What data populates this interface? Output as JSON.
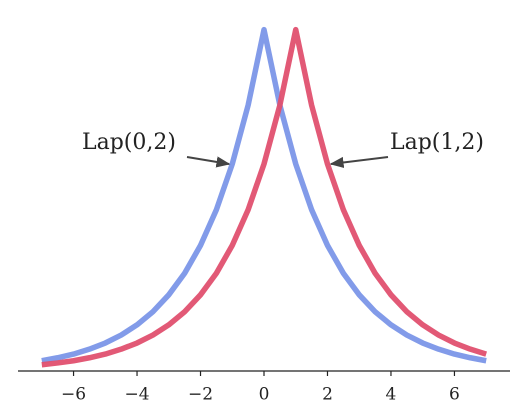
{
  "chart_data": {
    "type": "line",
    "x": [
      -7,
      -6.5,
      -6,
      -5.5,
      -5,
      -4.5,
      -4,
      -3.5,
      -3,
      -2.5,
      -2,
      -1.5,
      -1,
      -0.5,
      0,
      0.5,
      1,
      1.5,
      2,
      2.5,
      3,
      3.5,
      4,
      4.5,
      5,
      5.5,
      6,
      6.5,
      7
    ],
    "series": [
      {
        "name": "Lap(0,2)",
        "color": "#7b96e8",
        "values": [
          0.0075,
          0.0097,
          0.0124,
          0.016,
          0.0205,
          0.0263,
          0.0338,
          0.0434,
          0.0558,
          0.0716,
          0.092,
          0.1181,
          0.1516,
          0.1947,
          0.25,
          0.1947,
          0.1516,
          0.1181,
          0.092,
          0.0716,
          0.0558,
          0.0434,
          0.0338,
          0.0263,
          0.0205,
          0.016,
          0.0124,
          0.0097,
          0.0075
        ]
      },
      {
        "name": "Lap(1,2)",
        "color": "#e0506f",
        "values": [
          0.0046,
          0.0059,
          0.0075,
          0.0097,
          0.0124,
          0.016,
          0.0205,
          0.0263,
          0.0338,
          0.0434,
          0.0558,
          0.0716,
          0.092,
          0.1181,
          0.1516,
          0.1947,
          0.25,
          0.1947,
          0.1516,
          0.1181,
          0.092,
          0.0716,
          0.0558,
          0.0434,
          0.0338,
          0.0263,
          0.0205,
          0.016,
          0.0124
        ]
      }
    ],
    "xlim": [
      -7.75,
      7.75
    ],
    "xticks": [
      {
        "value": -6,
        "label": "−6"
      },
      {
        "value": -4,
        "label": "−4"
      },
      {
        "value": -2,
        "label": "−2"
      },
      0,
      2,
      4,
      6
    ],
    "ylim": [
      0,
      0.26
    ]
  }
}
